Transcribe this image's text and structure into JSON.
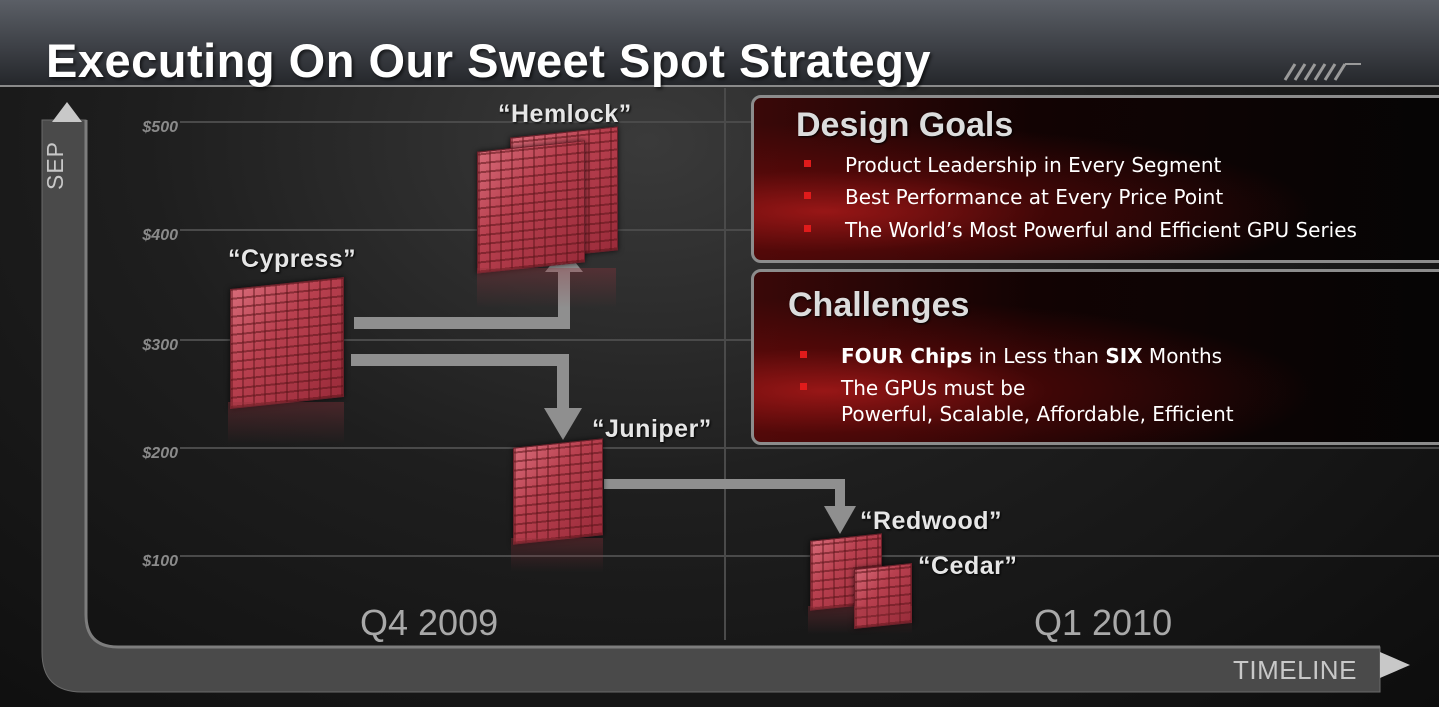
{
  "slide": {
    "title": "Executing On Our Sweet Spot Strategy"
  },
  "axes": {
    "y_axis_label": "SEP",
    "x_axis_label": "TIMELINE",
    "price_ticks": [
      "$500",
      "$400",
      "$300",
      "$200",
      "$100"
    ],
    "quarters": [
      "Q4 2009",
      "Q1 2010"
    ]
  },
  "chips": {
    "hemlock": "“Hemlock”",
    "cypress": "“Cypress”",
    "juniper": "“Juniper”",
    "redwood": "“Redwood”",
    "cedar": "“Cedar”"
  },
  "design_goals": {
    "heading": "Design Goals",
    "items": [
      "Product Leadership in Every Segment",
      "Best Performance at Every Price Point",
      "The World’s Most Powerful and Efficient GPU Series"
    ]
  },
  "challenges": {
    "heading": "Challenges",
    "item1_bold_a": "FOUR Chips",
    "item1_text_a": " in Less than ",
    "item1_bold_b": "SIX",
    "item1_text_b": " Months",
    "item2_line1": "The GPUs must be",
    "item2_line2": "Powerful, Scalable, Affordable, Efficient"
  },
  "colors": {
    "accent_red": "#e01b1b",
    "chip_red": "#b8404f",
    "arrow_gray": "#8f8f8f"
  }
}
